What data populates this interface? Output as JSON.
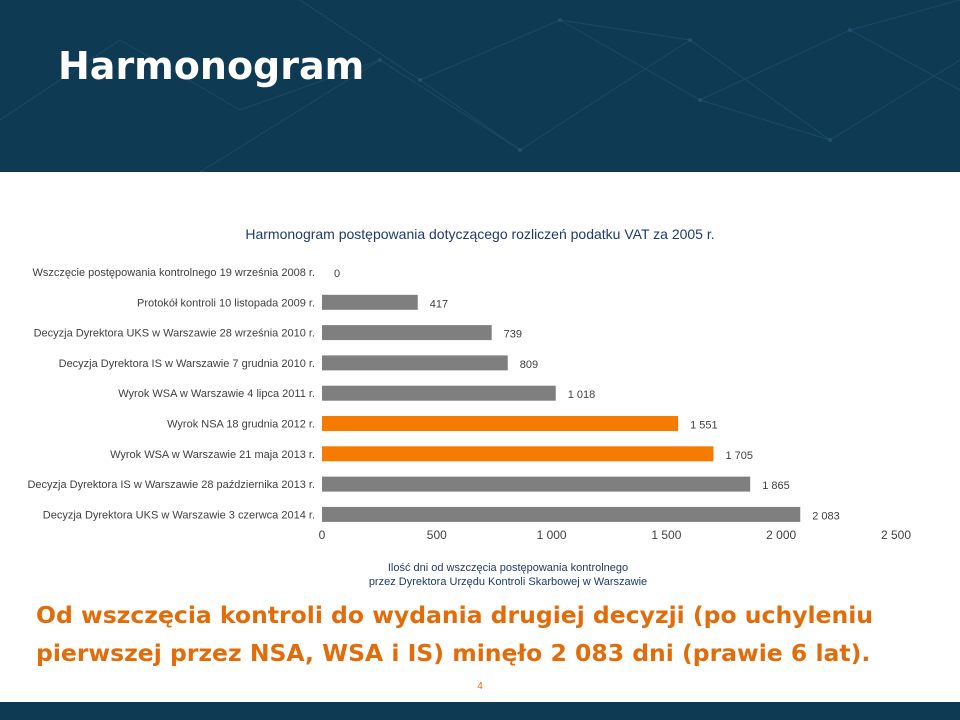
{
  "slide": {
    "title": "Harmonogram",
    "conclusion": "Od wszczęcia kontroli do wydania drugiej decyzji (po uchyleniu pierwszej przez NSA, WSA i IS) minęło 2 083 dni (prawie 6 lat).",
    "page_number": "4"
  },
  "colors": {
    "header": "#0f3a54",
    "bar_gray": "#7f7f7f",
    "bar_orange": "#f57c00",
    "conclusion": "#e36c0a",
    "chart_title": "#1f3a6b"
  },
  "chart_data": {
    "type": "bar",
    "orientation": "horizontal",
    "title": "Harmonogram postępowania dotyczącego rozliczeń podatku VAT za 2005 r.",
    "xlabel": "Ilość dni od wszczęcia postępowania kontrolnego przez Dyrektora Urzędu Kontroli Skarbowej w Warszawie",
    "xlabel_lines": [
      "Ilość dni od wszczęcia postępowania kontrolnego",
      "przez Dyrektora Urzędu Kontroli Skarbowej w Warszawie"
    ],
    "xlim": [
      0,
      2500
    ],
    "xticks": [
      0,
      500,
      1000,
      1500,
      2000,
      2500
    ],
    "xtick_labels": [
      "0",
      "500",
      "1 000",
      "1 500",
      "2 000",
      "2 500"
    ],
    "grid": false,
    "categories": [
      "Wszczęcie postępowania kontrolnego 19 września 2008 r.",
      "Protokół kontroli 10 listopada 2009 r.",
      "Decyzja Dyrektora UKS w Warszawie 28 września 2010 r.",
      "Decyzja Dyrektora IS w Warszawie 7 grudnia 2010 r.",
      "Wyrok WSA w Warszawie 4 lipca 2011 r.",
      "Wyrok NSA 18 grudnia 2012 r.",
      "Wyrok WSA w Warszawie 21 maja 2013 r.",
      "Decyzja Dyrektora IS w Warszawie 28 października 2013 r.",
      "Decyzja Dyrektora UKS w Warszawie 3 czerwca 2014 r."
    ],
    "values": [
      0,
      417,
      739,
      809,
      1018,
      1551,
      1705,
      1865,
      2083
    ],
    "value_labels": [
      "0",
      "417",
      "739",
      "809",
      "1 018",
      "1 551",
      "1 705",
      "1 865",
      "2 083"
    ],
    "bar_colors": [
      "#7f7f7f",
      "#7f7f7f",
      "#7f7f7f",
      "#7f7f7f",
      "#7f7f7f",
      "#f57c00",
      "#f57c00",
      "#7f7f7f",
      "#7f7f7f"
    ]
  }
}
